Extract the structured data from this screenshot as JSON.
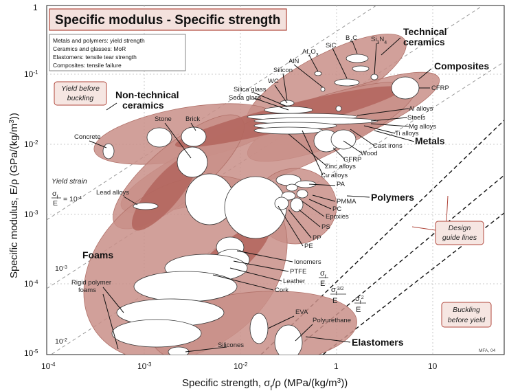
{
  "chart_data": {
    "type": "scatter",
    "title": "Specific modulus - Specific strength",
    "xlabel": "Specific strength, σf/ρ (MPa/(kg/m3))",
    "ylabel": "Specific modulus, E/ρ (GPa/(kg/m3))",
    "x_scale": "log",
    "y_scale": "log",
    "xlim": [
      0.0001,
      60
    ],
    "ylim": [
      1e-05,
      1
    ],
    "x_ticks": [
      "10-4",
      "10-3",
      "10-2",
      "1",
      "10"
    ],
    "y_ticks": [
      "10-5",
      "10-4",
      "10-3",
      "10-2",
      "10-1",
      "1"
    ],
    "grid": true,
    "legend_notes": [
      "Metals and polymers: yield strength",
      "Ceramics and glasses: MoR",
      "Elastomers: tensile tear strength",
      "Composites: tensile failure"
    ],
    "regions": [
      {
        "name": "Technical ceramics",
        "x": [
          0.02,
          3
        ],
        "y": [
          0.015,
          0.4
        ]
      },
      {
        "name": "Composites",
        "x": [
          0.1,
          8
        ],
        "y": [
          0.005,
          0.12
        ]
      },
      {
        "name": "Non-technical ceramics",
        "x": [
          0.0003,
          0.008
        ],
        "y": [
          0.002,
          0.05
        ]
      },
      {
        "name": "Metals",
        "x": [
          0.001,
          0.8
        ],
        "y": [
          0.0008,
          0.04
        ]
      },
      {
        "name": "Polymers",
        "x": [
          0.01,
          0.12
        ],
        "y": [
          0.0004,
          0.0025
        ]
      },
      {
        "name": "Foams",
        "x": [
          0.0006,
          0.01
        ],
        "y": [
          1e-05,
          0.01
        ]
      },
      {
        "name": "Elastomers",
        "x": [
          0.003,
          0.8
        ],
        "y": [
          1e-05,
          0.0001
        ]
      }
    ],
    "materials": [
      {
        "name": "B4C",
        "x": 2,
        "y": 0.16
      },
      {
        "name": "SiC",
        "x": 1.2,
        "y": 0.12
      },
      {
        "name": "Si3N4",
        "x": 3,
        "y": 0.08
      },
      {
        "name": "Al2O3",
        "x": 0.6,
        "y": 0.1
      },
      {
        "name": "AlN",
        "x": 0.5,
        "y": 0.085
      },
      {
        "name": "Silicon",
        "x": 0.4,
        "y": 0.075
      },
      {
        "name": "WC",
        "x": 0.15,
        "y": 0.035
      },
      {
        "name": "Silica glass",
        "x": 0.08,
        "y": 0.032
      },
      {
        "name": "Soda glass",
        "x": 0.05,
        "y": 0.028
      },
      {
        "name": "CFRP",
        "x": 5,
        "y": 0.07
      },
      {
        "name": "Al alloys",
        "x": 0.1,
        "y": 0.026
      },
      {
        "name": "Steels",
        "x": 0.08,
        "y": 0.026
      },
      {
        "name": "Mg alloys",
        "x": 0.12,
        "y": 0.024
      },
      {
        "name": "Ti alloys",
        "x": 0.15,
        "y": 0.022
      },
      {
        "name": "Cast irons",
        "x": 0.08,
        "y": 0.024
      },
      {
        "name": "Wood",
        "x": 0.15,
        "y": 0.015
      },
      {
        "name": "GFRP",
        "x": 0.3,
        "y": 0.013
      },
      {
        "name": "Zinc alloys",
        "x": 0.05,
        "y": 0.017
      },
      {
        "name": "Cu alloys",
        "x": 0.05,
        "y": 0.015
      },
      {
        "name": "Concrete",
        "x": 0.0004,
        "y": 0.01
      },
      {
        "name": "Stone",
        "x": 0.003,
        "y": 0.018
      },
      {
        "name": "Brick",
        "x": 0.004,
        "y": 0.015
      },
      {
        "name": "Lead alloys",
        "x": 0.001,
        "y": 0.0012
      },
      {
        "name": "PA",
        "x": 0.06,
        "y": 0.0018
      },
      {
        "name": "PMMA",
        "x": 0.05,
        "y": 0.0016
      },
      {
        "name": "PC",
        "x": 0.05,
        "y": 0.0013
      },
      {
        "name": "Epoxies",
        "x": 0.04,
        "y": 0.0012
      },
      {
        "name": "PS",
        "x": 0.03,
        "y": 0.0012
      },
      {
        "name": "PP",
        "x": 0.025,
        "y": 0.0009
      },
      {
        "name": "PE",
        "x": 0.02,
        "y": 0.0007
      },
      {
        "name": "Ionomers",
        "x": 0.01,
        "y": 0.0003
      },
      {
        "name": "PTFE",
        "x": 0.01,
        "y": 0.0002
      },
      {
        "name": "Leather",
        "x": 0.01,
        "y": 0.00015
      },
      {
        "name": "Cork",
        "x": 0.003,
        "y": 0.0001
      },
      {
        "name": "Rigid polymer foams",
        "x": 0.001,
        "y": 0.0001
      },
      {
        "name": "EVA",
        "x": 0.1,
        "y": 4e-05
      },
      {
        "name": "Polyurethane",
        "x": 0.3,
        "y": 3e-05
      },
      {
        "name": "Silicones",
        "x": 0.005,
        "y": 1e-05
      }
    ],
    "guide_lines": [
      "σf/E",
      "σf^(3/2)/E",
      "σf^2/E"
    ],
    "yield_strain_labels": [
      "σf/E = 10-4",
      "10-3",
      "10-2"
    ]
  },
  "labels": {
    "yield_before_buckling": "Yield before buckling",
    "buckling_before_yield": "Buckling before yield",
    "design_guide_lines": "Design guide lines",
    "yield_strain": "Yield strain",
    "source": "MFA, 04"
  }
}
